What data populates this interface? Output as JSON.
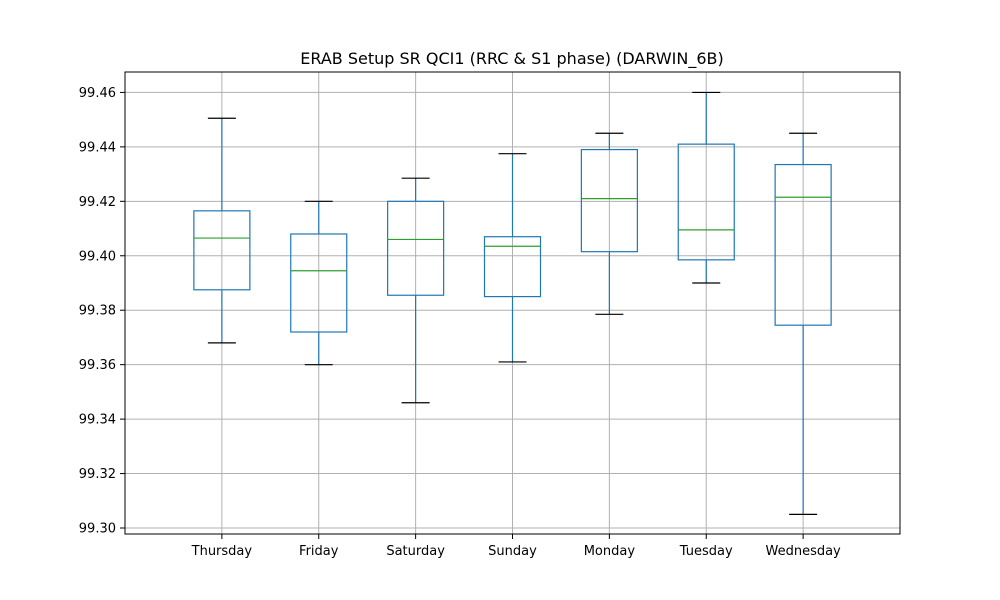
{
  "chart_data": {
    "type": "box",
    "title": "ERAB Setup SR QCI1 (RRC & S1 phase) (DARWIN_6B)",
    "xlabel": "",
    "ylabel": "",
    "ylim": [
      99.2978,
      99.4675
    ],
    "yticks": [
      "99.30",
      "99.32",
      "99.34",
      "99.36",
      "99.38",
      "99.40",
      "99.42",
      "99.44",
      "99.46"
    ],
    "grid": true,
    "categories": [
      "Thursday",
      "Friday",
      "Saturday",
      "Sunday",
      "Monday",
      "Tuesday",
      "Wednesday"
    ],
    "boxes": [
      {
        "whisker_low": 99.368,
        "q1": 99.3875,
        "median": 99.4065,
        "q3": 99.4165,
        "whisker_high": 99.4505
      },
      {
        "whisker_low": 99.36,
        "q1": 99.372,
        "median": 99.3945,
        "q3": 99.408,
        "whisker_high": 99.42
      },
      {
        "whisker_low": 99.346,
        "q1": 99.3855,
        "median": 99.406,
        "q3": 99.42,
        "whisker_high": 99.4285
      },
      {
        "whisker_low": 99.361,
        "q1": 99.385,
        "median": 99.4035,
        "q3": 99.407,
        "whisker_high": 99.4375
      },
      {
        "whisker_low": 99.3785,
        "q1": 99.4015,
        "median": 99.421,
        "q3": 99.439,
        "whisker_high": 99.445
      },
      {
        "whisker_low": 99.39,
        "q1": 99.3985,
        "median": 99.4095,
        "q3": 99.441,
        "whisker_high": 99.46
      },
      {
        "whisker_low": 99.305,
        "q1": 99.3745,
        "median": 99.4215,
        "q3": 99.4335,
        "whisker_high": 99.445
      }
    ],
    "colors": {
      "box": "#1f77b4",
      "median": "#2ca02c",
      "cap": "#000000",
      "grid": "#b0b0b0",
      "axes": "#000000"
    }
  }
}
